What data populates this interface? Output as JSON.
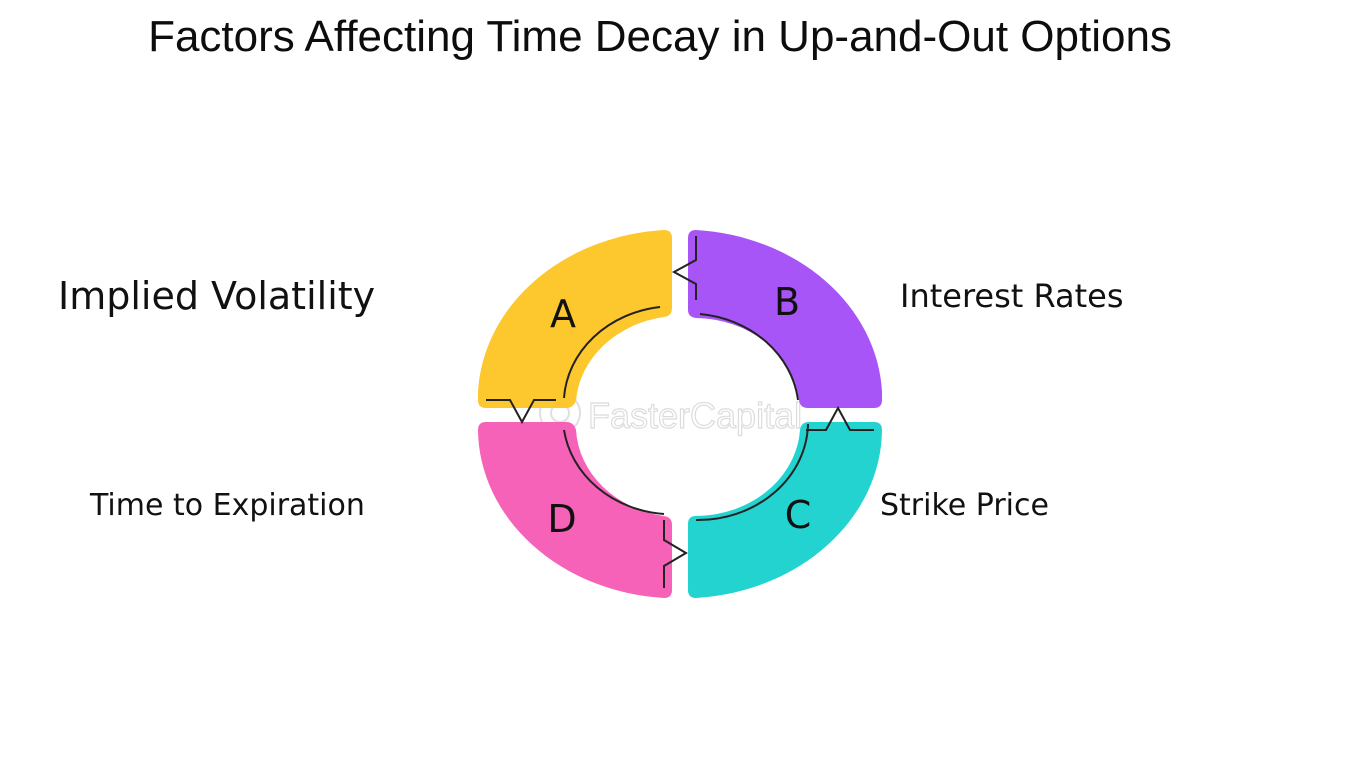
{
  "title": "Factors Affecting Time Decay in Up-and-Out Options",
  "segments": [
    {
      "letter": "A",
      "label": "Implied Volatility",
      "color": "#FDC72E"
    },
    {
      "letter": "B",
      "label": "Interest Rates",
      "color": "#A855F7"
    },
    {
      "letter": "C",
      "label": "Strike Price",
      "color": "#22D3D0"
    },
    {
      "letter": "D",
      "label": "Time to Expiration",
      "color": "#F562B8"
    }
  ],
  "watermark": "FasterCapital"
}
